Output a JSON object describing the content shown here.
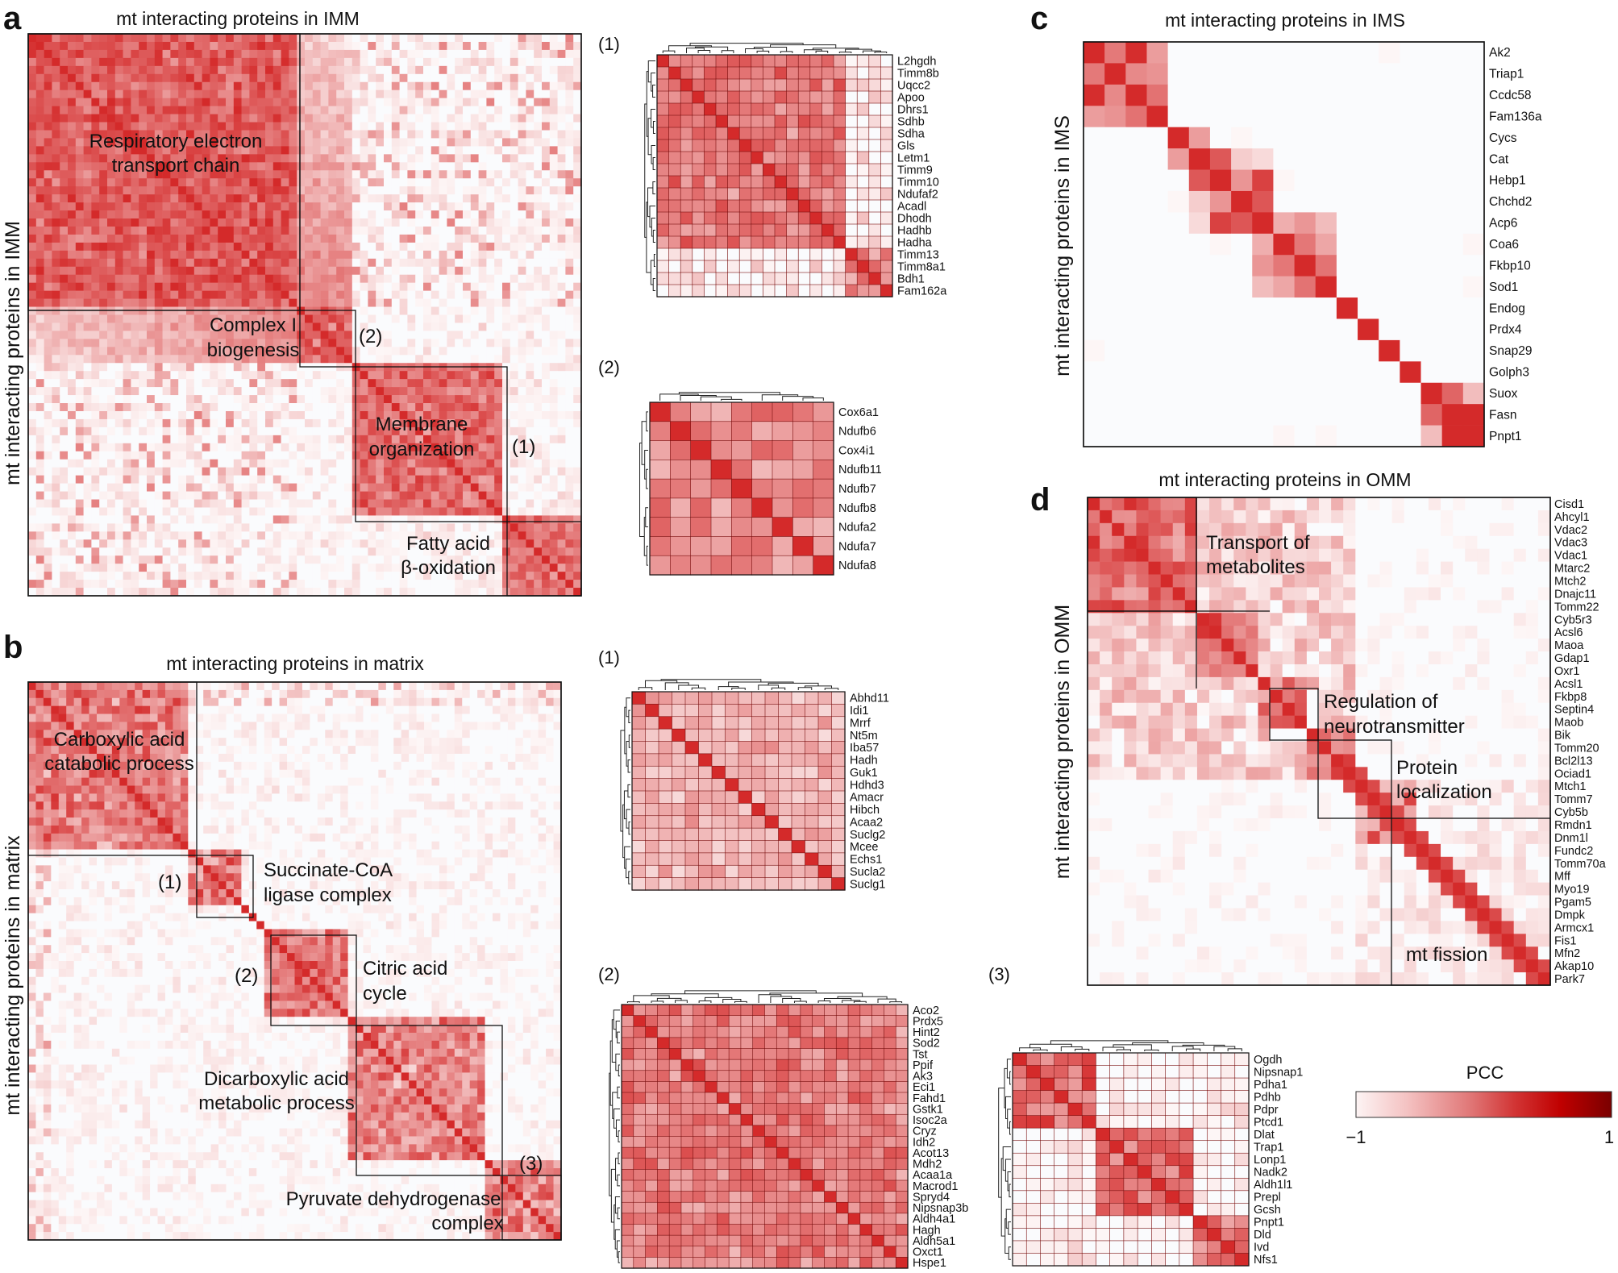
{
  "panels": {
    "a": {
      "letter": "a",
      "title": "mt interacting proteins in IMM",
      "ylabel": "mt interacting proteins in IMM"
    },
    "b": {
      "letter": "b",
      "title": "mt interacting proteins in matrix",
      "ylabel": "mt interacting proteins in matrix"
    },
    "c": {
      "letter": "c",
      "title": "mt interacting proteins in IMS",
      "ylabel": "mt interacting proteins in IMS"
    },
    "d": {
      "letter": "d",
      "title": "mt interacting proteins in OMM",
      "ylabel": "mt interacting proteins in OMM"
    }
  },
  "annotations": {
    "a": [
      [
        "Respiratory electron",
        "transport chain"
      ],
      [
        "Complex I",
        "biogenesis"
      ],
      [
        "(2)"
      ],
      [
        "Membrane",
        "organization"
      ],
      [
        "(1)"
      ],
      [
        "Fatty acid",
        "β-oxidation"
      ]
    ],
    "b": [
      [
        "Carboxylic acid",
        "catabolic process"
      ],
      [
        "(1)"
      ],
      [
        "Succinate-CoA",
        "ligase complex"
      ],
      [
        "(2)"
      ],
      [
        "Citric acid",
        "cycle"
      ],
      [
        "Dicarboxylic acid",
        "metabolic process"
      ],
      [
        "(3)"
      ],
      [
        "Pyruvate dehydrogenase",
        "complex"
      ]
    ],
    "d": [
      [
        "Transport of",
        "metabolites"
      ],
      [
        "Regulation of",
        "neurotransmitter"
      ],
      [
        "Protein",
        "localization"
      ],
      [
        "mt fission"
      ]
    ]
  },
  "sublabels": {
    "a1": "(1)",
    "a2": "(2)",
    "b1": "(1)",
    "b2": "(2)",
    "b3": "(3)"
  },
  "colorbar": {
    "title": "PCC",
    "min_label": "−1",
    "max_label": "1",
    "colors": [
      "#fdf4f4",
      "#f4c2c2",
      "#e07676",
      "#d23535",
      "#c00000",
      "#7a0000"
    ]
  },
  "chart_data": [
    {
      "id": "a-main",
      "type": "heatmap",
      "title": "mt interacting proteins in IMM",
      "ylabel": "mt interacting proteins in IMM",
      "value_range": [
        -1,
        1
      ],
      "clusters": [
        "Respiratory electron transport chain",
        "Complex I biogenesis",
        "Membrane organization",
        "Fatty acid β-oxidation"
      ]
    },
    {
      "id": "a1",
      "type": "heatmap",
      "label": "(1)",
      "value_range": [
        -1,
        1
      ],
      "genes": [
        "L2hgdh",
        "Timm8b",
        "Uqcc2",
        "Apoo",
        "Dhrs1",
        "Sdhb",
        "Sdha",
        "Gls",
        "Letm1",
        "Timm9",
        "Timm10",
        "Ndufaf2",
        "Acadl",
        "Dhodh",
        "Hadhb",
        "Hadha",
        "Timm13",
        "Timm8a1",
        "Bdh1",
        "Fam162a"
      ]
    },
    {
      "id": "a2",
      "type": "heatmap",
      "label": "(2)",
      "value_range": [
        -1,
        1
      ],
      "genes": [
        "Cox6a1",
        "Ndufb6",
        "Cox4i1",
        "Ndufb11",
        "Ndufb7",
        "Ndufb8",
        "Ndufa2",
        "Ndufa7",
        "Ndufa8"
      ]
    },
    {
      "id": "b-main",
      "type": "heatmap",
      "title": "mt interacting proteins in matrix",
      "ylabel": "mt interacting proteins in matrix",
      "value_range": [
        -1,
        1
      ],
      "clusters": [
        "Carboxylic acid catabolic process",
        "Succinate-CoA ligase complex",
        "Citric acid cycle",
        "Dicarboxylic acid metabolic process",
        "Pyruvate dehydrogenase complex"
      ]
    },
    {
      "id": "b1",
      "type": "heatmap",
      "label": "(1)",
      "value_range": [
        -1,
        1
      ],
      "genes": [
        "Abhd11",
        "Idi1",
        "Mrrf",
        "Nt5m",
        "Iba57",
        "Hadh",
        "Guk1",
        "Hdhd3",
        "Amacr",
        "Hibch",
        "Acaa2",
        "Suclg2",
        "Mcee",
        "Echs1",
        "Sucla2",
        "Suclg1"
      ]
    },
    {
      "id": "b2",
      "type": "heatmap",
      "label": "(2)",
      "value_range": [
        -1,
        1
      ],
      "genes": [
        "Aco2",
        "Prdx5",
        "Hint2",
        "Sod2",
        "Tst",
        "Ppif",
        "Ak3",
        "Eci1",
        "Fahd1",
        "Gstk1",
        "Isoc2a",
        "Cryz",
        "Idh2",
        "Acot13",
        "Mdh2",
        "Acaa1a",
        "Macrod1",
        "Spryd4",
        "Nipsnap3b",
        "Aldh4a1",
        "Hagh",
        "Aldh5a1",
        "Oxct1",
        "Hspe1"
      ]
    },
    {
      "id": "b3",
      "type": "heatmap",
      "label": "(3)",
      "value_range": [
        -1,
        1
      ],
      "genes": [
        "Ogdh",
        "Nipsnap1",
        "Pdha1",
        "Pdhb",
        "Pdpr",
        "Ptcd1",
        "Dlat",
        "Trap1",
        "Lonp1",
        "Nadk2",
        "Aldh1l1",
        "Prepl",
        "Gcsh",
        "Pnpt1",
        "Dld",
        "Ivd",
        "Nfs1"
      ]
    },
    {
      "id": "c",
      "type": "heatmap",
      "title": "mt interacting proteins in IMS",
      "ylabel": "mt interacting proteins in IMS",
      "value_range": [
        -1,
        1
      ],
      "genes": [
        "Ak2",
        "Triap1",
        "Ccdc58",
        "Fam136a",
        "Cycs",
        "Cat",
        "Hebp1",
        "Chchd2",
        "Acp6",
        "Coa6",
        "Fkbp10",
        "Sod1",
        "Endog",
        "Prdx4",
        "Snap29",
        "Golph3",
        "Suox",
        "Fasn",
        "Pnpt1"
      ]
    },
    {
      "id": "d",
      "type": "heatmap",
      "title": "mt interacting proteins in OMM",
      "ylabel": "mt interacting proteins in OMM",
      "value_range": [
        -1,
        1
      ],
      "genes": [
        "Cisd1",
        "Ahcyl1",
        "Vdac2",
        "Vdac3",
        "Vdac1",
        "Mtarc2",
        "Mtch2",
        "Dnajc11",
        "Tomm22",
        "Cyb5r3",
        "Acsl6",
        "Maoa",
        "Gdap1",
        "Oxr1",
        "Acsl1",
        "Fkbp8",
        "Septin4",
        "Maob",
        "Bik",
        "Tomm20",
        "Bcl2l13",
        "Ociad1",
        "Mtch1",
        "Tomm7",
        "Cyb5b",
        "Rmdn1",
        "Dnm1l",
        "Fundc2",
        "Tomm70a",
        "Mff",
        "Myo19",
        "Pgam5",
        "Dmpk",
        "Armcx1",
        "Fis1",
        "Mfn2",
        "Akap10",
        "Park7"
      ],
      "clusters": [
        "Transport of metabolites",
        "Regulation of neurotransmitter",
        "Protein localization",
        "mt fission"
      ]
    }
  ]
}
